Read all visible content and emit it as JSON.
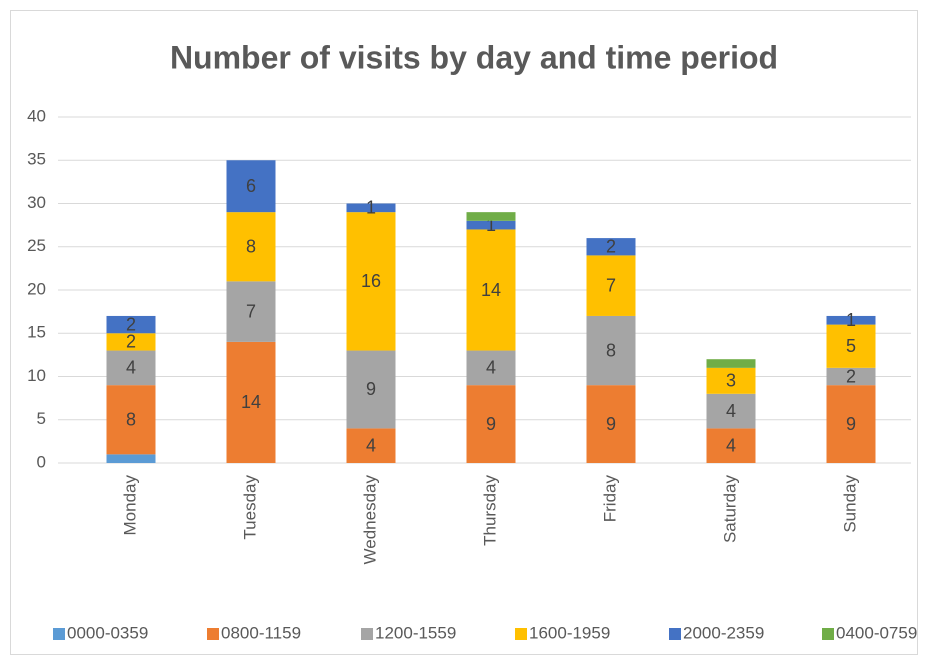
{
  "chart_data": {
    "type": "stacked_bar",
    "title": "Number of visits by day and time period",
    "categories": [
      "Monday",
      "Tuesday",
      "Wednesday",
      "Thursday",
      "Friday",
      "Saturday",
      "Sunday"
    ],
    "series": [
      {
        "name": "0000-0359",
        "color": "#5b9bd5",
        "data_labels": false,
        "values": [
          1,
          null,
          null,
          null,
          null,
          null,
          null
        ]
      },
      {
        "name": "0800-1159",
        "color": "#ed7d31",
        "data_labels": true,
        "values": [
          8,
          14,
          4,
          9,
          9,
          4,
          9
        ]
      },
      {
        "name": "1200-1559",
        "color": "#a5a5a5",
        "data_labels": true,
        "values": [
          4,
          7,
          9,
          4,
          8,
          4,
          2
        ]
      },
      {
        "name": "1600-1959",
        "color": "#ffc000",
        "data_labels": true,
        "values": [
          2,
          8,
          16,
          14,
          7,
          3,
          5
        ]
      },
      {
        "name": "2000-2359",
        "color": "#4472c4",
        "data_labels": true,
        "values": [
          2,
          6,
          1,
          1,
          2,
          null,
          1
        ]
      },
      {
        "name": "0400-0759",
        "color": "#70ad47",
        "data_labels": false,
        "values": [
          null,
          null,
          null,
          1,
          null,
          1,
          null
        ]
      }
    ],
    "ylim": [
      0,
      40
    ],
    "yticks": [
      0,
      5,
      10,
      15,
      20,
      25,
      30,
      35,
      40
    ],
    "grid": true,
    "legend": "bottom"
  }
}
